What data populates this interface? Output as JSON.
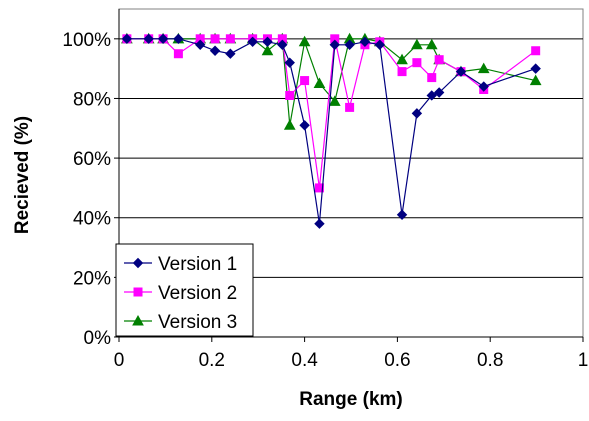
{
  "chart_data": {
    "type": "line",
    "title": "",
    "xlabel": "Range (km)",
    "ylabel": "Recieved (%)",
    "xlim": [
      0,
      1
    ],
    "ylim": [
      0,
      110
    ],
    "x_ticks": [
      0,
      0.2,
      0.4,
      0.6,
      0.8,
      1
    ],
    "x_tick_labels": [
      "0",
      "0.2",
      "0.4",
      "0.6",
      "0.8",
      "1"
    ],
    "y_ticks": [
      0,
      20,
      40,
      60,
      80,
      100
    ],
    "y_tick_labels": [
      "0%",
      "20%",
      "40%",
      "60%",
      "80%",
      "100%"
    ],
    "grid": "horizontal",
    "legend_position": "bottom-left",
    "series": [
      {
        "name": "Version 1",
        "color": "#000080",
        "marker": "diamond",
        "points": [
          [
            0.017,
            100
          ],
          [
            0.064,
            100
          ],
          [
            0.095,
            100
          ],
          [
            0.128,
            100
          ],
          [
            0.175,
            98
          ],
          [
            0.207,
            96
          ],
          [
            0.24,
            95
          ],
          [
            0.288,
            99
          ],
          [
            0.32,
            99
          ],
          [
            0.352,
            98
          ],
          [
            0.368,
            92
          ],
          [
            0.4,
            71
          ],
          [
            0.432,
            38
          ],
          [
            0.465,
            98
          ],
          [
            0.497,
            98
          ],
          [
            0.53,
            99
          ],
          [
            0.562,
            98
          ],
          [
            0.61,
            41
          ],
          [
            0.642,
            75
          ],
          [
            0.674,
            81
          ],
          [
            0.69,
            82
          ],
          [
            0.737,
            89
          ],
          [
            0.786,
            84
          ],
          [
            0.898,
            90
          ]
        ]
      },
      {
        "name": "Version 2",
        "color": "#FF00FF",
        "marker": "square",
        "points": [
          [
            0.017,
            100
          ],
          [
            0.064,
            100
          ],
          [
            0.095,
            100
          ],
          [
            0.128,
            95
          ],
          [
            0.175,
            100
          ],
          [
            0.207,
            100
          ],
          [
            0.24,
            100
          ],
          [
            0.288,
            100
          ],
          [
            0.32,
            100
          ],
          [
            0.352,
            100
          ],
          [
            0.368,
            81
          ],
          [
            0.4,
            86
          ],
          [
            0.432,
            50
          ],
          [
            0.465,
            100
          ],
          [
            0.497,
            77
          ],
          [
            0.53,
            98
          ],
          [
            0.562,
            99
          ],
          [
            0.61,
            89
          ],
          [
            0.642,
            92
          ],
          [
            0.674,
            87
          ],
          [
            0.69,
            93
          ],
          [
            0.737,
            89
          ],
          [
            0.786,
            83
          ],
          [
            0.898,
            96
          ]
        ]
      },
      {
        "name": "Version 3",
        "color": "#008000",
        "marker": "triangle",
        "points": [
          [
            0.017,
            100
          ],
          [
            0.064,
            100
          ],
          [
            0.095,
            100
          ],
          [
            0.128,
            100
          ],
          [
            0.175,
            100
          ],
          [
            0.207,
            100
          ],
          [
            0.24,
            100
          ],
          [
            0.288,
            100
          ],
          [
            0.32,
            96
          ],
          [
            0.352,
            100
          ],
          [
            0.368,
            71
          ],
          [
            0.4,
            99
          ],
          [
            0.432,
            85
          ],
          [
            0.465,
            79
          ],
          [
            0.497,
            100
          ],
          [
            0.53,
            100
          ],
          [
            0.562,
            99
          ],
          [
            0.61,
            93
          ],
          [
            0.642,
            98
          ],
          [
            0.674,
            98
          ],
          [
            0.69,
            93
          ],
          [
            0.737,
            89
          ],
          [
            0.786,
            90
          ],
          [
            0.898,
            86
          ]
        ]
      }
    ]
  }
}
